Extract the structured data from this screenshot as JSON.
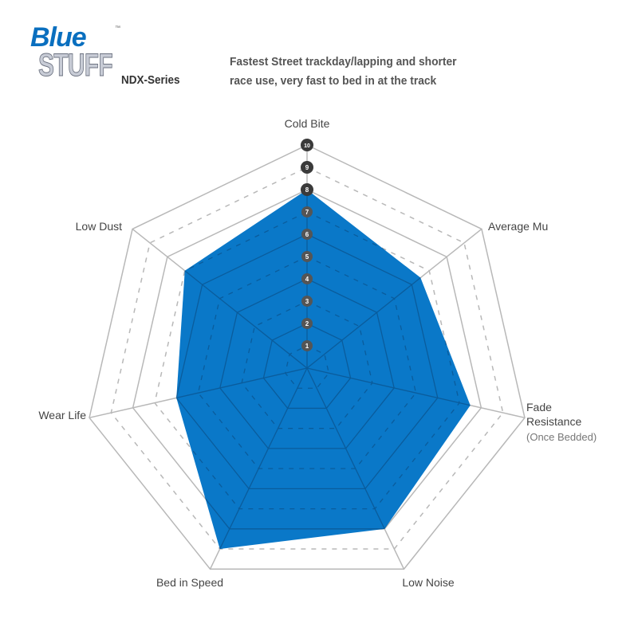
{
  "logo": {
    "line1": "Blue",
    "line2": "STUFF",
    "tm": "™"
  },
  "series_name": "NDX-Series",
  "description": [
    "Fastest Street trackday/lapping and shorter",
    "race use, very fast to bed in at the track"
  ],
  "chart_data": {
    "type": "radar",
    "categories": [
      "Cold Bite",
      "Average Mu",
      "Fade Resistance",
      "Low Noise",
      "Bed in Speed",
      "Wear Life",
      "Low Dust"
    ],
    "category_sublabels": {
      "Fade Resistance": "(Once Bedded)"
    },
    "values": [
      8,
      6.5,
      7.5,
      8,
      9,
      6,
      7
    ],
    "scale": [
      1,
      10
    ],
    "scale_labels": [
      "1",
      "2",
      "3",
      "4",
      "5",
      "6",
      "7",
      "8",
      "9",
      "10"
    ],
    "fill_color": "#0a78c8",
    "grid": true
  }
}
